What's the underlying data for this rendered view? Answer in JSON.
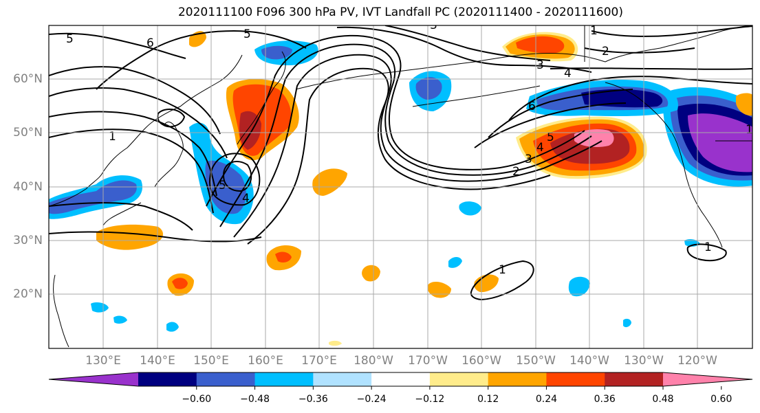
{
  "title": "2020111100 F096 300 hPa PV, IVT Landfall PC (2020111400 - 2020111600)",
  "lat_labels": [
    "60°N",
    "50°N",
    "40°N",
    "30°N",
    "20°N"
  ],
  "lon_labels": [
    "130°E",
    "140°E",
    "150°E",
    "160°E",
    "170°E",
    "180°W",
    "170°W",
    "160°W",
    "150°W",
    "140°W",
    "130°W",
    "120°W"
  ],
  "contour_labels": [
    "5",
    "6",
    "5",
    "3",
    "1",
    "2",
    "3",
    "4",
    "6",
    "5",
    "4",
    "3",
    "2",
    "1",
    "5",
    "4",
    "1",
    "1",
    "1"
  ],
  "colorbar": {
    "colors": [
      "#9932cc",
      "#000080",
      "#3a5fcd",
      "#00bfff",
      "#b0e2ff",
      "#ffffff",
      "#ffec8b",
      "#ffa500",
      "#ff4500",
      "#b22222",
      "#ff82ab"
    ],
    "tick_labels": [
      "−0.60",
      "−0.48",
      "−0.36",
      "−0.24",
      "−0.12",
      "0.12",
      "0.24",
      "0.36",
      "0.48",
      "0.60"
    ]
  },
  "colors": {
    "axis_label": "#808080",
    "grid": "#a9a9a9",
    "contour": "#000000"
  }
}
